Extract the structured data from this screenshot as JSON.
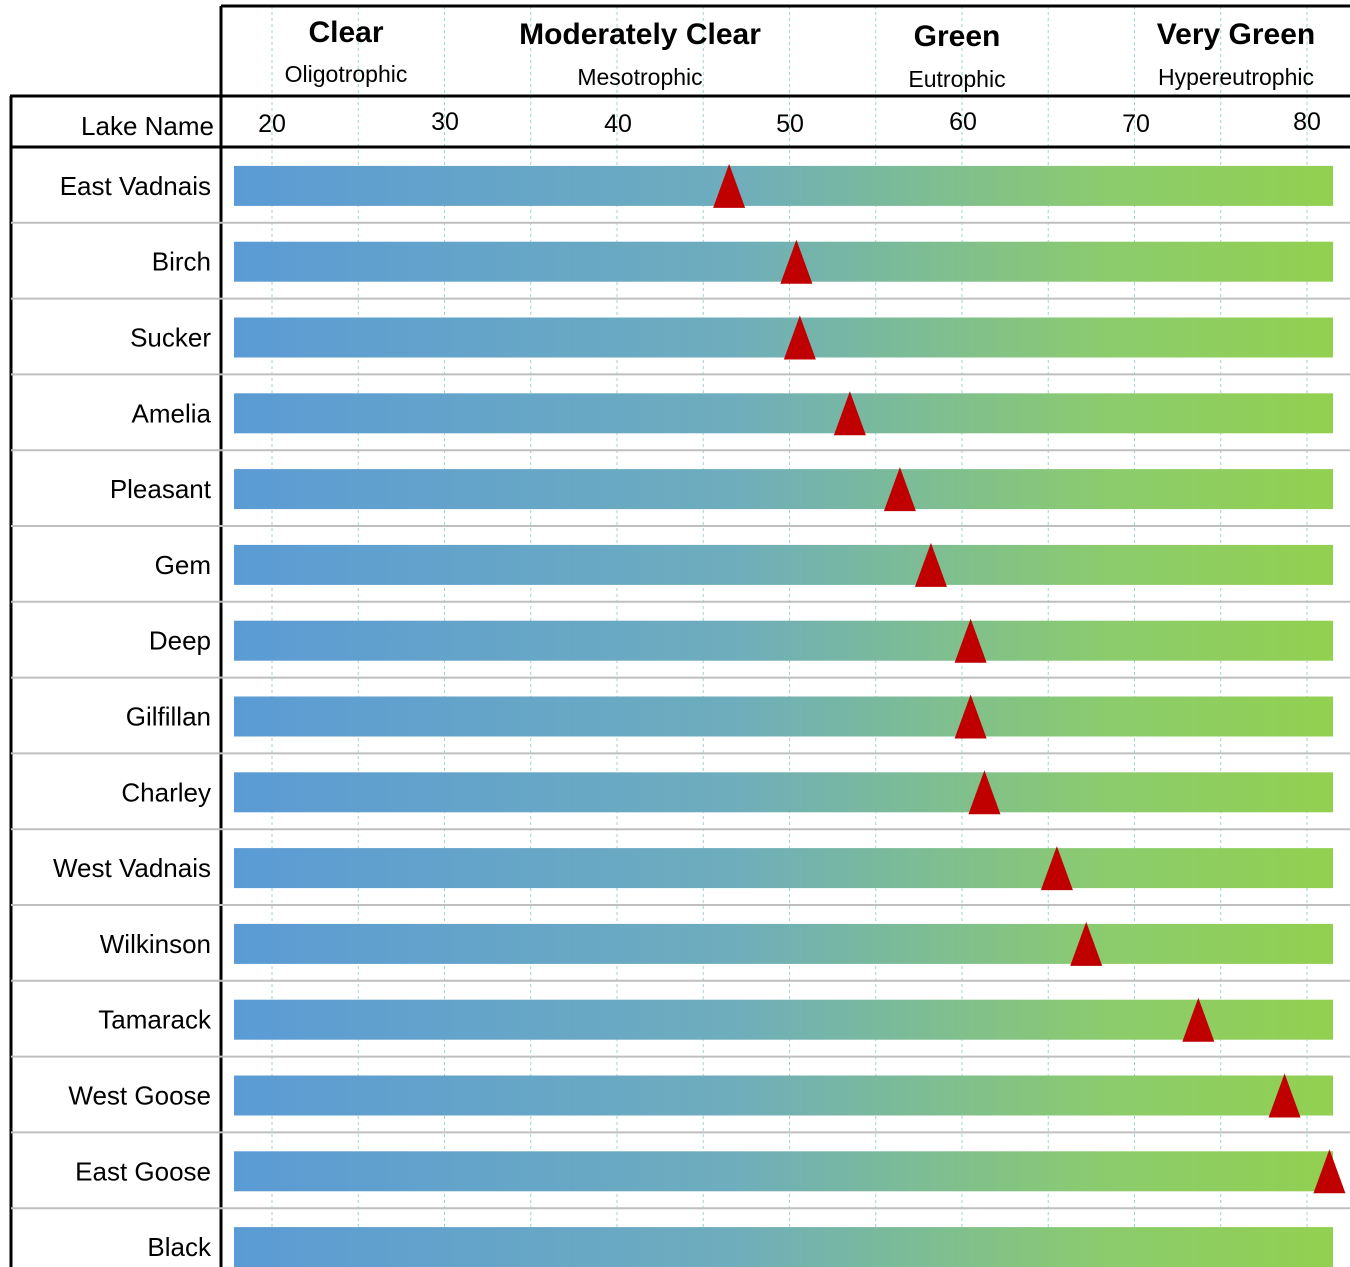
{
  "chart_data": {
    "type": "bar",
    "ylabel": "Lake Name",
    "x_ticks": [
      "20",
      "30",
      "40",
      "50",
      "60",
      "70",
      "80"
    ],
    "xlim": [
      18,
      82
    ],
    "categories_top": [
      {
        "label": "Clear",
        "sublabel": "Oligotrophic"
      },
      {
        "label": "Moderately Clear",
        "sublabel": "Mesotrophic"
      },
      {
        "label": "Green",
        "sublabel": "Eutrophic"
      },
      {
        "label": "Very Green",
        "sublabel": "Hypereutrophic"
      }
    ],
    "lakes": [
      "East Vadnais",
      "Birch",
      "Sucker",
      "Amelia",
      "Pleasant",
      "Gem",
      "Deep",
      "Gilfillan",
      "Charley",
      "West Vadnais",
      "Wilkinson",
      "Tamarack",
      "West Goose",
      "East Goose",
      "Black"
    ],
    "values": [
      46.5,
      50.4,
      50.6,
      53.5,
      56.4,
      58.2,
      60.5,
      60.5,
      61.3,
      65.5,
      67.2,
      73.7,
      78.7,
      81.3,
      null
    ],
    "grid": true,
    "gradient": [
      "#5b9bd5",
      "#92d050"
    ],
    "marker_color": "#c00000"
  }
}
